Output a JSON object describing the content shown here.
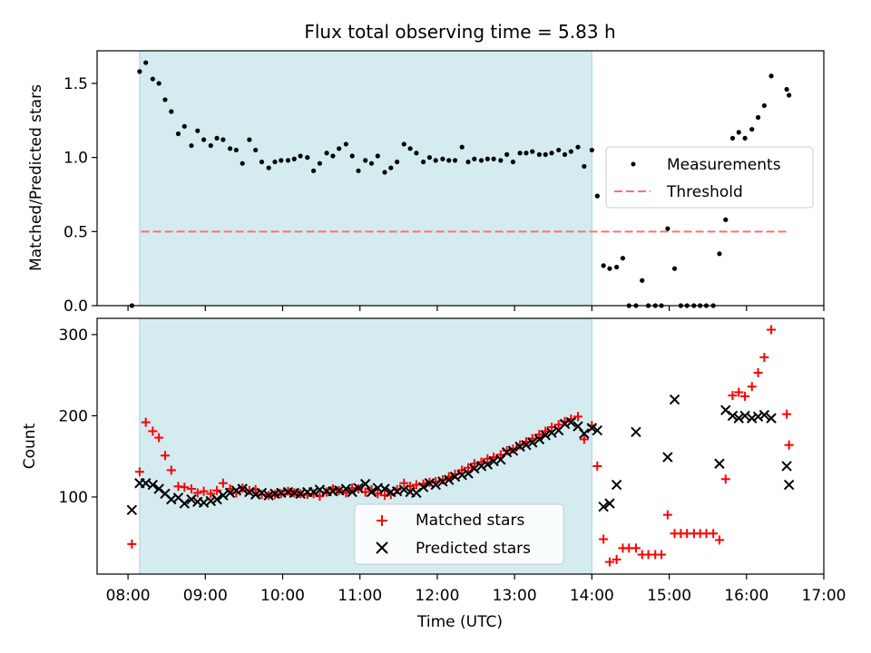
{
  "figure": {
    "title": "Flux total observing time = 5.83 h",
    "colors": {
      "shade": "#d4ebf0",
      "shade_edge": "#a8d4dc",
      "threshold": "#ff7070",
      "measure": "#000000",
      "matched": "#ff0000",
      "predicted": "#000000"
    }
  },
  "chart_data": [
    {
      "type": "scatter",
      "ylabel": "Matched/Predicted stars",
      "xlabel": "",
      "xlim": [
        7.6,
        17.0
      ],
      "ylim": [
        0.0,
        1.72
      ],
      "yticks": [
        {
          "v": 0.0,
          "label": "0.0"
        },
        {
          "v": 0.5,
          "label": "0.5"
        },
        {
          "v": 1.0,
          "label": "1.0"
        },
        {
          "v": 1.5,
          "label": "1.5"
        }
      ],
      "shaded_span": [
        8.15,
        14.0
      ],
      "threshold": {
        "value": 0.5,
        "x_start": 8.17,
        "x_end": 16.55
      },
      "legend": {
        "position": "center-right",
        "items": [
          {
            "label": "Measurements",
            "marker": "dot"
          },
          {
            "label": "Threshold",
            "marker": "dashed-line"
          }
        ]
      },
      "series": [
        {
          "name": "Measurements",
          "x": [
            8.05,
            8.15,
            8.23,
            8.32,
            8.4,
            8.48,
            8.56,
            8.65,
            8.73,
            8.82,
            8.9,
            8.98,
            9.07,
            9.15,
            9.23,
            9.32,
            9.4,
            9.48,
            9.57,
            9.65,
            9.73,
            9.82,
            9.9,
            9.98,
            10.07,
            10.15,
            10.23,
            10.32,
            10.4,
            10.48,
            10.57,
            10.65,
            10.73,
            10.82,
            10.9,
            10.98,
            11.07,
            11.15,
            11.23,
            11.32,
            11.4,
            11.48,
            11.57,
            11.65,
            11.73,
            11.82,
            11.9,
            11.98,
            12.07,
            12.15,
            12.23,
            12.32,
            12.4,
            12.48,
            12.57,
            12.65,
            12.73,
            12.82,
            12.9,
            12.98,
            13.07,
            13.15,
            13.23,
            13.32,
            13.4,
            13.48,
            13.57,
            13.65,
            13.73,
            13.82,
            13.9,
            14.0,
            14.07,
            14.15,
            14.23,
            14.32,
            14.4,
            14.48,
            14.57,
            14.65,
            14.73,
            14.82,
            14.9,
            14.98,
            15.07,
            15.15,
            15.23,
            15.32,
            15.4,
            15.48,
            15.57,
            15.65,
            15.73,
            15.82,
            15.9,
            15.98,
            16.07,
            16.15,
            16.23,
            16.32,
            16.52,
            16.55
          ],
          "y": [
            0.0,
            1.58,
            1.64,
            1.53,
            1.5,
            1.39,
            1.31,
            1.16,
            1.21,
            1.08,
            1.18,
            1.12,
            1.08,
            1.13,
            1.12,
            1.06,
            1.05,
            0.96,
            1.12,
            1.05,
            0.97,
            0.93,
            0.97,
            0.98,
            0.98,
            0.99,
            1.01,
            1.0,
            0.91,
            0.96,
            1.03,
            1.01,
            1.06,
            1.09,
            1.01,
            0.91,
            0.98,
            0.96,
            1.01,
            0.9,
            0.93,
            0.97,
            1.09,
            1.06,
            1.03,
            0.97,
            1.0,
            0.98,
            0.99,
            0.98,
            0.98,
            1.07,
            0.97,
            0.99,
            0.98,
            0.99,
            0.99,
            0.98,
            1.02,
            0.97,
            1.03,
            1.03,
            1.04,
            1.02,
            1.02,
            1.03,
            1.05,
            1.02,
            1.04,
            1.07,
            0.94,
            1.05,
            0.74,
            0.27,
            0.25,
            0.26,
            0.32,
            0.0,
            0.0,
            0.17,
            0.0,
            0.0,
            0.0,
            0.52,
            0.25,
            0.0,
            0.0,
            0.0,
            0.0,
            0.0,
            0.0,
            0.35,
            0.58,
            1.13,
            1.17,
            1.13,
            1.19,
            1.27,
            1.35,
            1.55,
            1.46,
            1.42
          ]
        }
      ]
    },
    {
      "type": "scatter",
      "ylabel": "Count",
      "xlabel": "Time (UTC)",
      "xlim": [
        7.6,
        17.0
      ],
      "ylim": [
        5,
        320
      ],
      "yticks": [
        {
          "v": 100,
          "label": "100"
        },
        {
          "v": 200,
          "label": "200"
        },
        {
          "v": 300,
          "label": "300"
        }
      ],
      "xticks": [
        {
          "v": 8,
          "label": "08:00"
        },
        {
          "v": 9,
          "label": "09:00"
        },
        {
          "v": 10,
          "label": "10:00"
        },
        {
          "v": 11,
          "label": "11:00"
        },
        {
          "v": 12,
          "label": "12:00"
        },
        {
          "v": 13,
          "label": "13:00"
        },
        {
          "v": 14,
          "label": "14:00"
        },
        {
          "v": 15,
          "label": "15:00"
        },
        {
          "v": 16,
          "label": "16:00"
        },
        {
          "v": 17,
          "label": "17:00"
        }
      ],
      "shaded_span": [
        8.15,
        14.0
      ],
      "legend": {
        "position": "lower-center",
        "items": [
          {
            "label": "Matched stars",
            "marker": "plus"
          },
          {
            "label": "Predicted stars",
            "marker": "x"
          }
        ]
      },
      "series": [
        {
          "name": "Matched stars",
          "x": [
            8.05,
            8.15,
            8.23,
            8.32,
            8.4,
            8.48,
            8.56,
            8.65,
            8.73,
            8.82,
            8.9,
            8.98,
            9.07,
            9.15,
            9.23,
            9.32,
            9.4,
            9.48,
            9.57,
            9.65,
            9.73,
            9.82,
            9.9,
            9.98,
            10.07,
            10.15,
            10.23,
            10.32,
            10.4,
            10.48,
            10.57,
            10.65,
            10.73,
            10.82,
            10.9,
            10.98,
            11.07,
            11.15,
            11.23,
            11.32,
            11.4,
            11.48,
            11.57,
            11.65,
            11.73,
            11.82,
            11.9,
            11.98,
            12.07,
            12.15,
            12.23,
            12.32,
            12.4,
            12.48,
            12.57,
            12.65,
            12.73,
            12.82,
            12.9,
            12.98,
            13.07,
            13.15,
            13.23,
            13.32,
            13.4,
            13.48,
            13.57,
            13.65,
            13.73,
            13.82,
            13.9,
            14.0,
            14.07,
            14.15,
            14.23,
            14.32,
            14.4,
            14.48,
            14.57,
            14.65,
            14.73,
            14.82,
            14.9,
            14.98,
            15.07,
            15.15,
            15.23,
            15.32,
            15.4,
            15.48,
            15.57,
            15.65,
            15.73,
            15.82,
            15.9,
            15.98,
            16.07,
            16.15,
            16.23,
            16.32,
            16.52,
            16.55
          ],
          "y": [
            42,
            131,
            192,
            181,
            173,
            151,
            133,
            113,
            112,
            110,
            105,
            107,
            104,
            108,
            117,
            110,
            105,
            111,
            108,
            109,
            103,
            102,
            103,
            104,
            107,
            105,
            104,
            103,
            104,
            101,
            106,
            110,
            108,
            105,
            111,
            110,
            106,
            109,
            104,
            102,
            103,
            109,
            117,
            113,
            115,
            116,
            118,
            119,
            121,
            125,
            128,
            133,
            136,
            141,
            143,
            147,
            149,
            152,
            157,
            159,
            164,
            168,
            172,
            177,
            181,
            186,
            189,
            193,
            196,
            199,
            171,
            188,
            138,
            48,
            20,
            23,
            37,
            37,
            37,
            29,
            29,
            29,
            29,
            78,
            55,
            55,
            55,
            55,
            55,
            55,
            55,
            47,
            122,
            225,
            229,
            224,
            236,
            253,
            272,
            306,
            202,
            164
          ]
        },
        {
          "name": "Predicted stars",
          "x": [
            8.05,
            8.15,
            8.23,
            8.32,
            8.4,
            8.48,
            8.56,
            8.65,
            8.73,
            8.82,
            8.9,
            8.98,
            9.07,
            9.15,
            9.23,
            9.32,
            9.4,
            9.48,
            9.57,
            9.65,
            9.73,
            9.82,
            9.9,
            9.98,
            10.07,
            10.15,
            10.23,
            10.32,
            10.4,
            10.48,
            10.57,
            10.65,
            10.73,
            10.82,
            10.9,
            10.98,
            11.07,
            11.15,
            11.23,
            11.32,
            11.4,
            11.48,
            11.57,
            11.65,
            11.73,
            11.82,
            11.9,
            11.98,
            12.07,
            12.15,
            12.23,
            12.32,
            12.4,
            12.48,
            12.57,
            12.65,
            12.73,
            12.82,
            12.9,
            12.98,
            13.07,
            13.15,
            13.23,
            13.32,
            13.4,
            13.48,
            13.57,
            13.65,
            13.73,
            13.82,
            13.9,
            14.0,
            14.07,
            14.15,
            14.23,
            14.32,
            14.57,
            14.98,
            15.07,
            15.65,
            15.73,
            15.82,
            15.9,
            15.98,
            16.07,
            16.15,
            16.23,
            16.32,
            16.52,
            16.55
          ],
          "y": [
            84,
            117,
            117,
            115,
            110,
            104,
            97,
            99,
            92,
            97,
            94,
            93,
            95,
            97,
            102,
            105,
            108,
            110,
            106,
            103,
            105,
            102,
            104,
            105,
            106,
            105,
            104,
            106,
            106,
            109,
            107,
            107,
            108,
            110,
            106,
            111,
            116,
            106,
            111,
            110,
            106,
            107,
            109,
            106,
            105,
            112,
            117,
            115,
            119,
            121,
            125,
            127,
            129,
            135,
            138,
            140,
            144,
            146,
            155,
            157,
            162,
            164,
            167,
            171,
            176,
            179,
            182,
            190,
            192,
            187,
            178,
            185,
            182,
            88,
            92,
            115,
            180,
            149,
            220,
            141,
            207,
            200,
            197,
            200,
            197,
            199,
            201,
            197,
            138,
            115
          ]
        }
      ]
    }
  ]
}
